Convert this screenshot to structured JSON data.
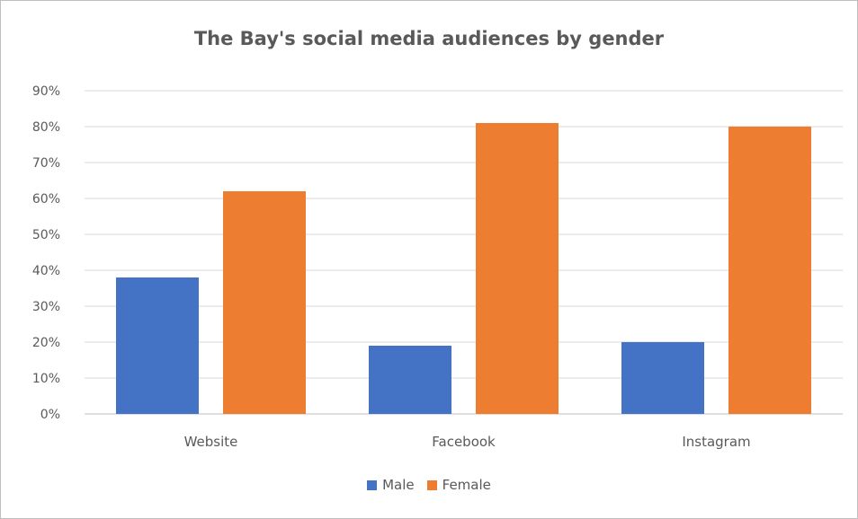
{
  "chart_data": {
    "type": "bar",
    "title": "The Bay's social media audiences by gender",
    "categories": [
      "Website",
      "Facebook",
      "Instagram"
    ],
    "series": [
      {
        "name": "Male",
        "color": "#4472C4",
        "values": [
          38,
          19,
          20
        ]
      },
      {
        "name": "Female",
        "color": "#ED7D31",
        "values": [
          62,
          81,
          80
        ]
      }
    ],
    "ylim": [
      0,
      90
    ],
    "yticks": [
      "0%",
      "10%",
      "20%",
      "30%",
      "40%",
      "50%",
      "60%",
      "70%",
      "80%",
      "90%"
    ],
    "xlabel": "",
    "ylabel": "",
    "grid": true,
    "legend_position": "bottom"
  }
}
